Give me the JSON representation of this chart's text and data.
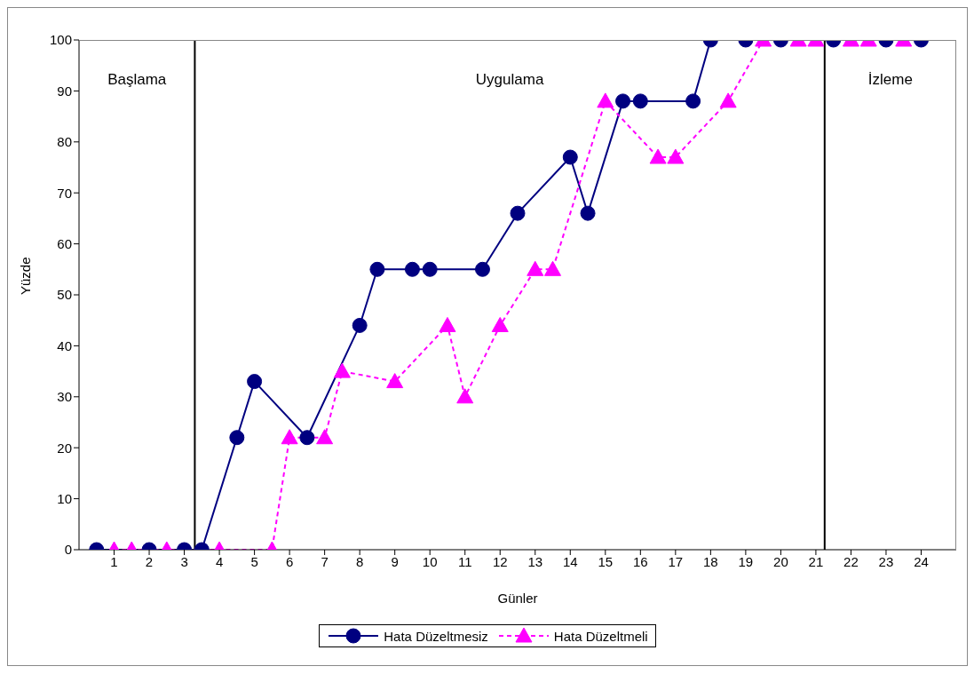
{
  "chart_data": {
    "type": "line",
    "xlabel": "Günler",
    "ylabel": "Yüzde",
    "xlim": [
      0,
      25
    ],
    "xticks": [
      1,
      2,
      3,
      4,
      5,
      6,
      7,
      8,
      9,
      10,
      11,
      12,
      13,
      14,
      15,
      16,
      17,
      18,
      19,
      20,
      21,
      22,
      23,
      24
    ],
    "ylim": [
      0,
      100
    ],
    "yticks": [
      0,
      10,
      20,
      30,
      40,
      50,
      60,
      70,
      80,
      90,
      100
    ],
    "grid": false,
    "legend": "bottom",
    "ref_lines": [
      {
        "axis": "x",
        "value": 3.3,
        "color": "#000000"
      },
      {
        "axis": "x",
        "value": 21.25,
        "color": "#000000"
      }
    ],
    "annotations": [
      "Başlama",
      "Uygulama",
      "İzleme"
    ],
    "series": [
      {
        "name": "Hata Düzeltmesiz",
        "color": "#000080",
        "marker": "circle",
        "line_style": "solid",
        "x": [
          0.5,
          2,
          3,
          3.5,
          4.5,
          5,
          6.5,
          8,
          8.5,
          9.5,
          10,
          11.5,
          12.5,
          14,
          14.5,
          15.5,
          16,
          17.5,
          18,
          19,
          20,
          21.5,
          23,
          24
        ],
        "values": [
          0,
          0,
          0,
          0,
          22,
          33,
          22,
          44,
          55,
          55,
          55,
          55,
          66,
          77,
          66,
          88,
          88,
          88,
          100,
          100,
          100,
          100,
          100,
          100
        ]
      },
      {
        "name": "Hata Düzeltmeli",
        "color": "#ff00ff",
        "marker": "triangle",
        "line_style": "dashed",
        "x": [
          1,
          1.5,
          2.5,
          4,
          5.5,
          6,
          7,
          7.5,
          9,
          10.5,
          11,
          12,
          13,
          13.5,
          15,
          16.5,
          17,
          18.5,
          19.5,
          20.5,
          21,
          22,
          22.5,
          23.5
        ],
        "values": [
          0,
          0,
          0,
          0,
          0,
          22,
          22,
          35,
          33,
          44,
          30,
          44,
          55,
          55,
          88,
          77,
          77,
          88,
          100,
          100,
          100,
          100,
          100,
          100
        ]
      }
    ]
  }
}
